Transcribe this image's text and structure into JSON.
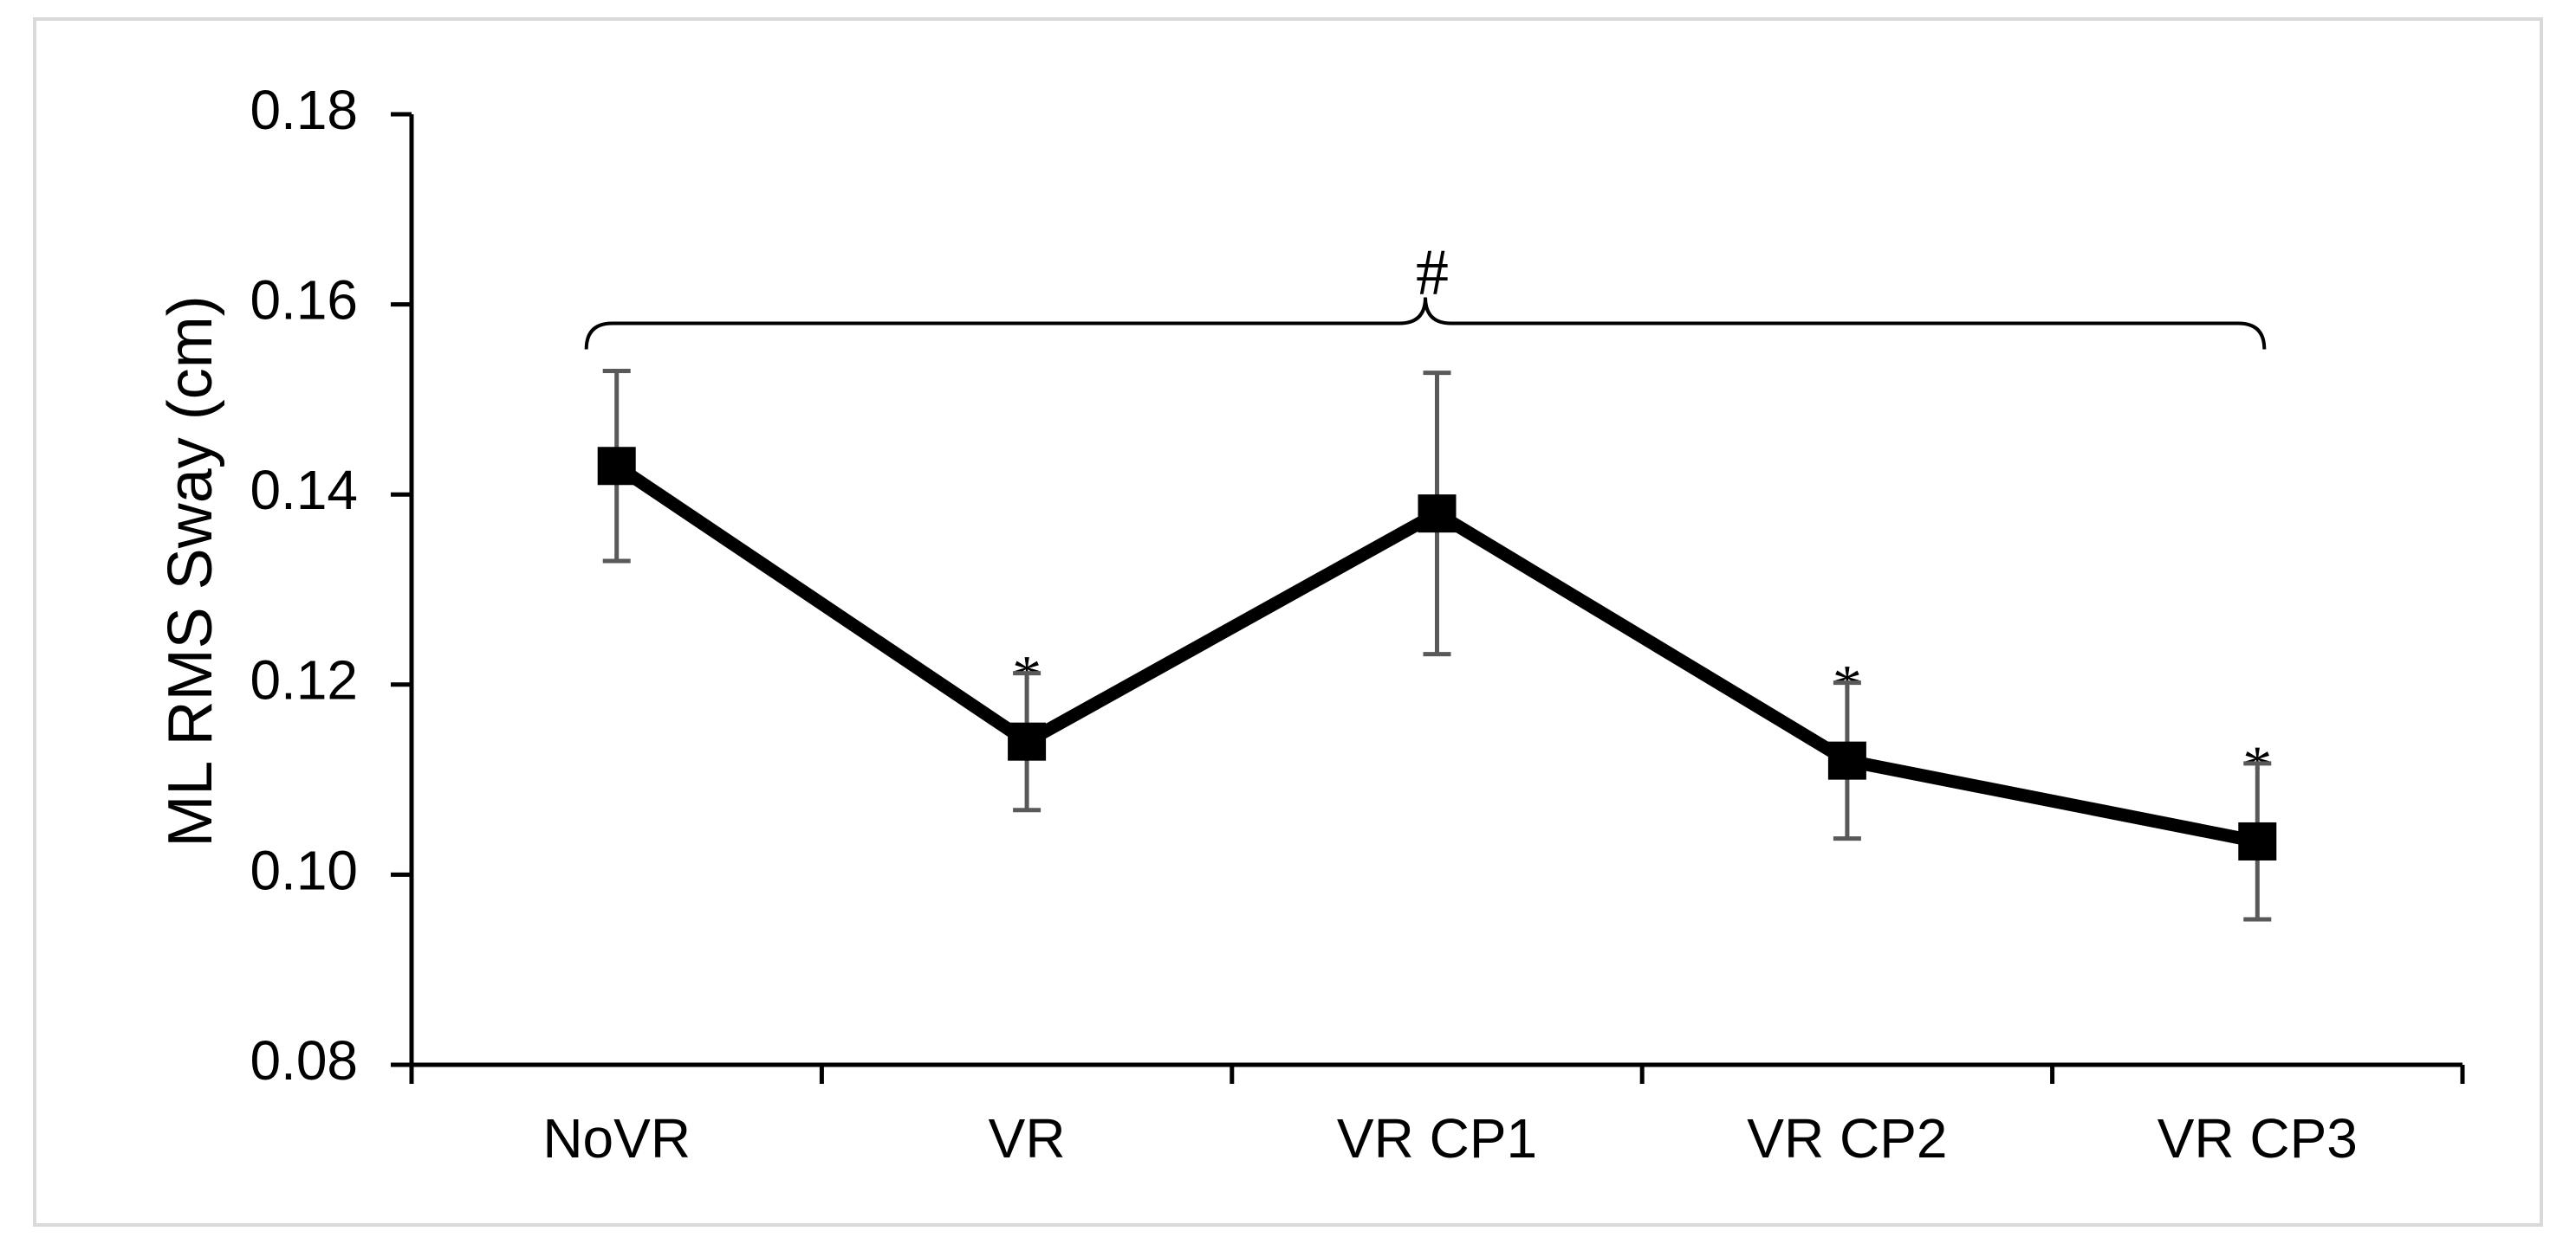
{
  "chart_data": {
    "type": "line",
    "title": "",
    "xlabel": "",
    "ylabel": "ML RMS Sway (cm)",
    "ylim": [
      0.08,
      0.18
    ],
    "yticks": [
      "0.08",
      "0.10",
      "0.12",
      "0.14",
      "0.16",
      "0.18"
    ],
    "categories": [
      "NoVR",
      "VR",
      "VR CP1",
      "VR CP2",
      "VR CP3"
    ],
    "series": [
      {
        "name": "ML RMS Sway",
        "values": [
          0.143,
          0.114,
          0.138,
          0.112,
          0.1035
        ],
        "error": [
          0.01,
          0.0072,
          0.0148,
          0.0082,
          0.0082
        ],
        "color": "#000000",
        "error_color": "#595959",
        "marker": "square"
      }
    ],
    "annotations": {
      "significance_marks": [
        "",
        "*",
        "",
        "*",
        "*"
      ],
      "group_bracket": {
        "label": "#",
        "from": "NoVR",
        "to": "VR CP3",
        "y": 0.158
      }
    },
    "grid": false,
    "legend": "none"
  }
}
